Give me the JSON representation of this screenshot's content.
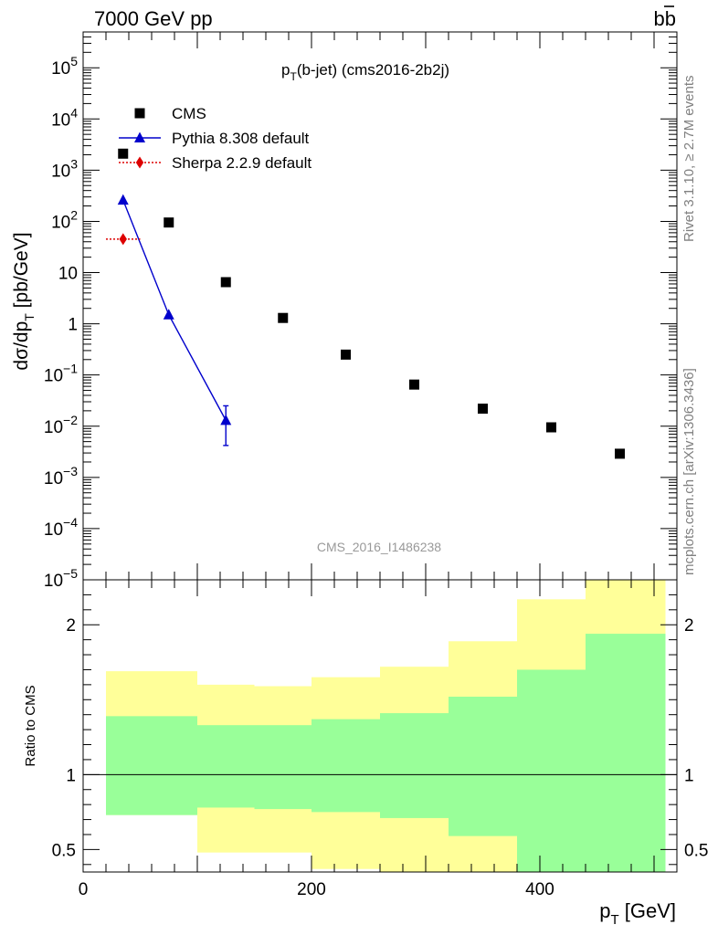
{
  "header": {
    "energy_label": "7000 GeV pp",
    "process_label": "bb"
  },
  "side_labels": {
    "rivet": "Rivet 3.1.10, ≥ 2.7M events",
    "mcplots": "mcplots.cern.ch [arXiv:1306.3436]"
  },
  "chart_data": [
    {
      "type": "scatter",
      "title": "pT(b-jet) (cms2016-2b2j)",
      "watermark": "CMS_2016_I1486238",
      "ylabel": "dσ/dpT [pb/GeV]",
      "yscale": "log",
      "xlim": [
        0,
        520
      ],
      "ylim": [
        1e-05,
        500000
      ],
      "legend_position": "top-left",
      "y_ticks": [
        {
          "value": 100000,
          "label": "10^5"
        },
        {
          "value": 10000,
          "label": "10^4"
        },
        {
          "value": 1000,
          "label": "10^3"
        },
        {
          "value": 100,
          "label": "10^2"
        },
        {
          "value": 10,
          "label": "10"
        },
        {
          "value": 1,
          "label": "1"
        },
        {
          "value": 0.1,
          "label": "10^-1"
        },
        {
          "value": 0.01,
          "label": "10^-2"
        },
        {
          "value": 0.001,
          "label": "10^-3"
        },
        {
          "value": 0.0001,
          "label": "10^-4"
        },
        {
          "value": 1e-05,
          "label": "10^-5"
        }
      ],
      "series": [
        {
          "name": "CMS",
          "color": "#000000",
          "marker": "square",
          "x": [
            35,
            75,
            125,
            175,
            230,
            290,
            350,
            410,
            470
          ],
          "y": [
            2100,
            95,
            6.5,
            1.3,
            0.25,
            0.065,
            0.022,
            0.0095,
            0.0029
          ]
        },
        {
          "name": "Pythia 8.308 default",
          "color": "#0000cc",
          "marker": "triangle",
          "x": [
            35,
            75,
            125
          ],
          "y": [
            260,
            1.5,
            0.013
          ],
          "yerr_low": [
            0,
            0,
            0.0042
          ],
          "yerr_high": [
            0,
            0,
            0.025
          ]
        },
        {
          "name": "Sherpa 2.2.9 default",
          "color": "#dd0000",
          "marker": "diamond",
          "x": [
            35
          ],
          "xerr": [
            [
              20,
              50
            ]
          ],
          "y": [
            45
          ]
        }
      ]
    },
    {
      "type": "area",
      "ylabel": "Ratio to CMS",
      "xlabel": "pT [GeV]",
      "xlim": [
        0,
        520
      ],
      "ylim": [
        0.35,
        2.3
      ],
      "x_ticks": [
        0,
        200,
        400
      ],
      "y_ticks": [
        {
          "value": 0.5,
          "label": "0.5"
        },
        {
          "value": 1,
          "label": "1"
        },
        {
          "value": 2,
          "label": "2"
        }
      ],
      "bins": [
        20,
        100,
        150,
        200,
        260,
        320,
        380,
        440,
        510
      ],
      "bands": [
        {
          "color": "#ffff99",
          "low": [
            0.73,
            0.48,
            0.48,
            0.37,
            0.35,
            0.35,
            0.3,
            0.3
          ],
          "high": [
            1.69,
            1.6,
            1.59,
            1.65,
            1.72,
            1.89,
            2.17,
            2.36
          ]
        },
        {
          "color": "#99ff99",
          "low": [
            0.73,
            0.78,
            0.77,
            0.75,
            0.71,
            0.59,
            0.3,
            0.3
          ],
          "high": [
            1.39,
            1.33,
            1.33,
            1.37,
            1.41,
            1.52,
            1.7,
            1.94
          ]
        }
      ],
      "reference_line": 1
    }
  ]
}
